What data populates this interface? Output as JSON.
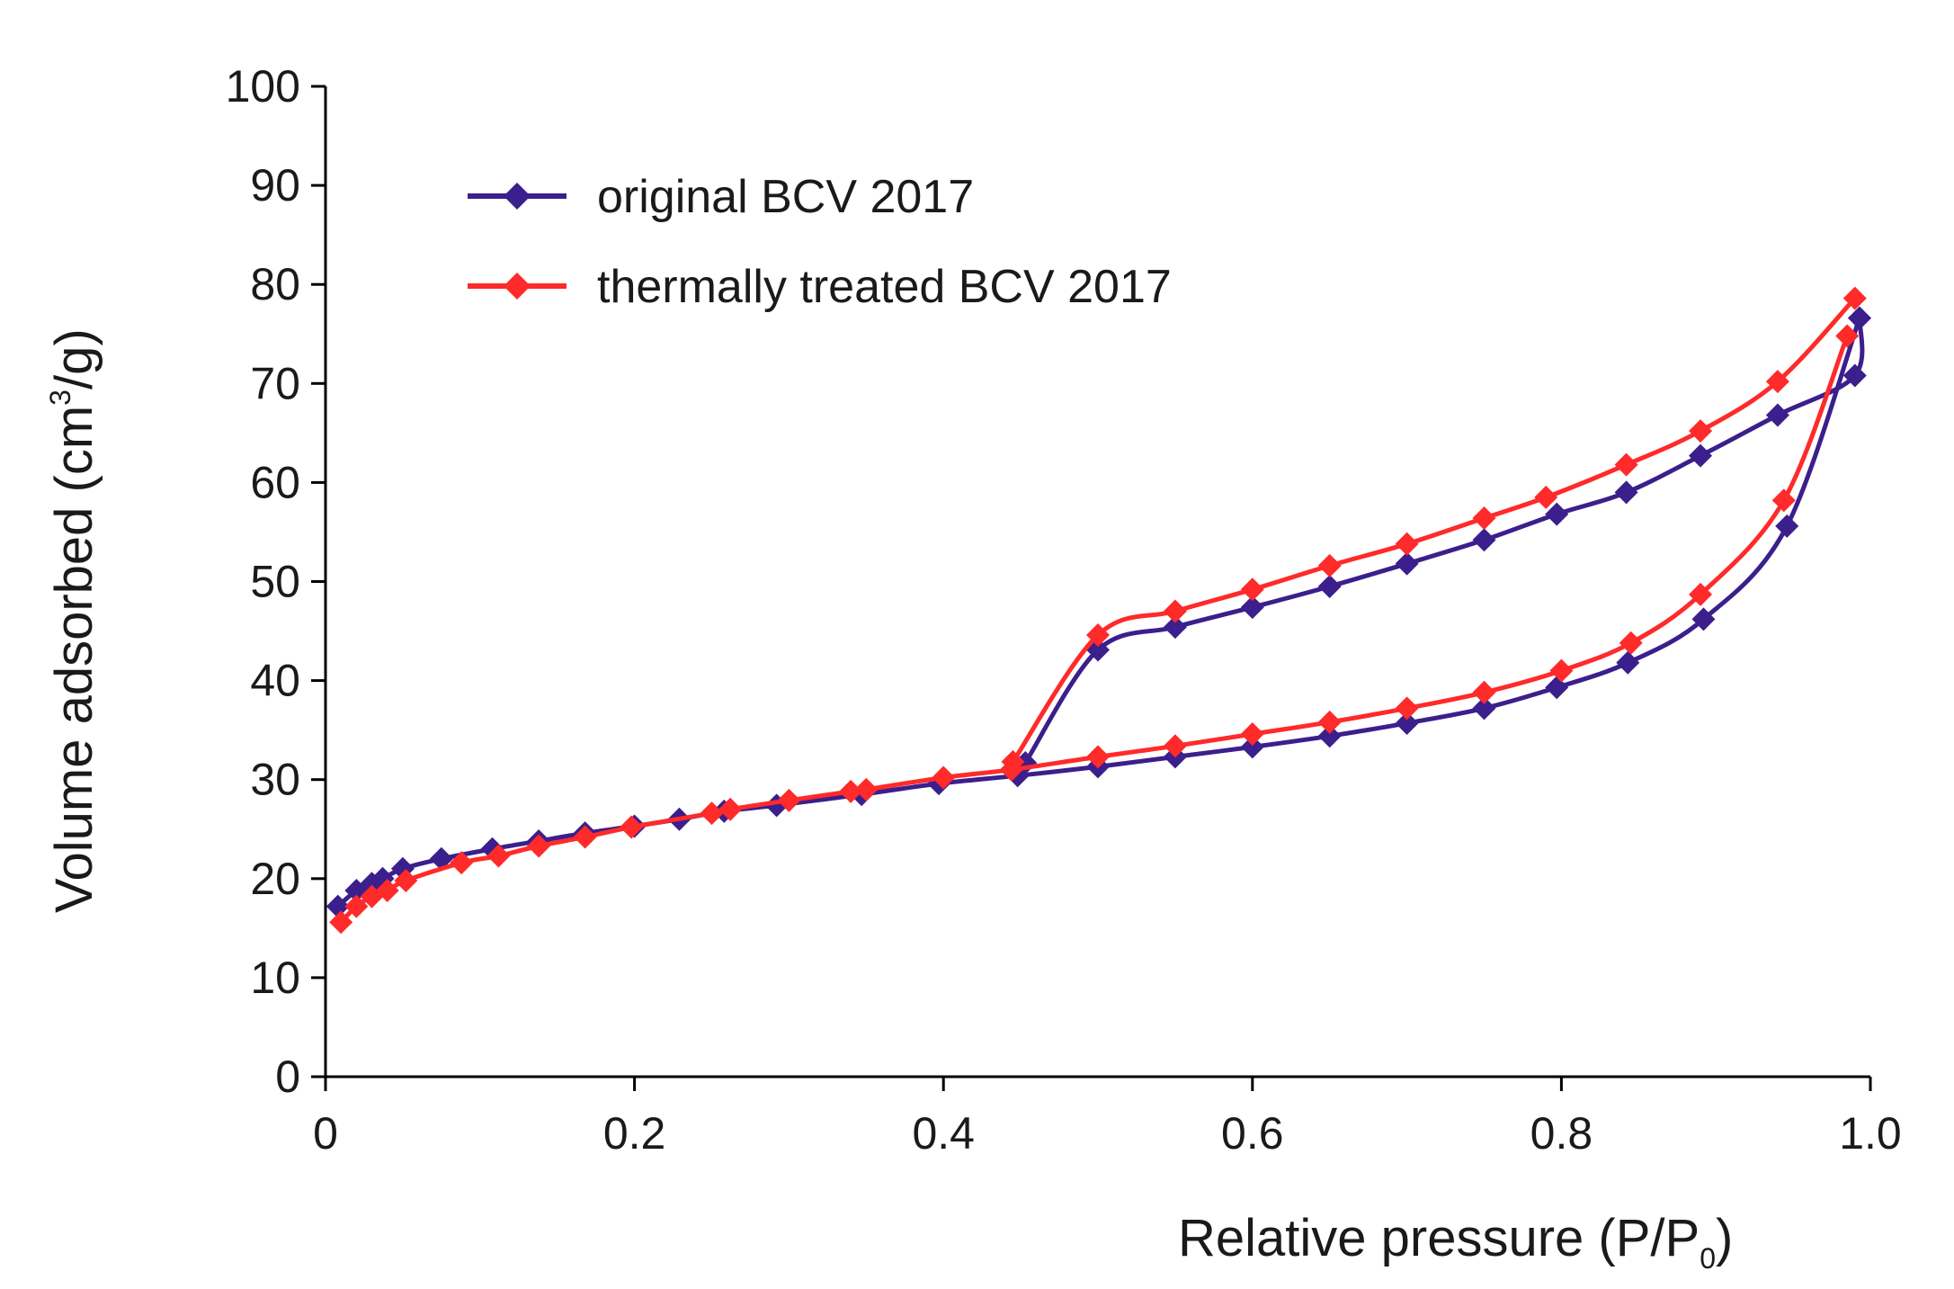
{
  "chart_data": {
    "type": "line",
    "title": "",
    "xlabel": {
      "main": "Relative pressure (P/P",
      "sub": "0",
      "end": ")"
    },
    "ylabel": {
      "main": "Volume adsorbed (cm",
      "sup": "3",
      "end": "/g)"
    },
    "xlim": [
      0,
      1.0
    ],
    "ylim": [
      0,
      100
    ],
    "x_ticks": [
      0,
      0.2,
      0.4,
      0.6,
      0.8,
      1.0
    ],
    "x_tick_labels": [
      "0",
      "0.2",
      "0.4",
      "0.6",
      "0.8",
      "1.0"
    ],
    "y_ticks": [
      0,
      10,
      20,
      30,
      40,
      50,
      60,
      70,
      80,
      90,
      100
    ],
    "y_tick_labels": [
      "0",
      "10",
      "20",
      "30",
      "40",
      "50",
      "60",
      "70",
      "80",
      "90",
      "100"
    ],
    "legend_position": "top-left",
    "series": [
      {
        "name": "original BCV 2017",
        "color": "#3b1f8c",
        "marker": "diamond",
        "adsorption": {
          "x": [
            0.008,
            0.02,
            0.03,
            0.037,
            0.05,
            0.075,
            0.108,
            0.138,
            0.168,
            0.2,
            0.229,
            0.258,
            0.292,
            0.347,
            0.397,
            0.448,
            0.5,
            0.55,
            0.6,
            0.65,
            0.7,
            0.75,
            0.797,
            0.843,
            0.892,
            0.946,
            0.993
          ],
          "y": [
            17.2,
            18.8,
            19.5,
            20.0,
            21.0,
            22.0,
            23.0,
            23.8,
            24.6,
            25.3,
            26.0,
            26.8,
            27.4,
            28.5,
            29.6,
            30.4,
            31.3,
            32.3,
            33.3,
            34.4,
            35.7,
            37.2,
            39.3,
            41.8,
            46.2,
            55.6,
            76.6
          ]
        },
        "desorption": {
          "x": [
            0.993,
            0.99,
            0.94,
            0.89,
            0.842,
            0.797,
            0.75,
            0.7,
            0.65,
            0.6,
            0.55,
            0.5,
            0.453
          ],
          "y": [
            76.6,
            70.8,
            66.8,
            62.7,
            59.0,
            56.8,
            54.2,
            51.8,
            49.5,
            47.4,
            45.4,
            43.1,
            31.7
          ]
        }
      },
      {
        "name": "thermally treated  BCV 2017",
        "color": "#ff2a2a",
        "marker": "diamond",
        "adsorption": {
          "x": [
            0.01,
            0.02,
            0.03,
            0.04,
            0.052,
            0.088,
            0.112,
            0.138,
            0.168,
            0.198,
            0.25,
            0.262,
            0.3,
            0.34,
            0.35,
            0.4,
            0.444,
            0.5,
            0.55,
            0.6,
            0.65,
            0.7,
            0.75,
            0.8,
            0.845,
            0.89,
            0.944,
            0.985
          ],
          "y": [
            15.6,
            17.2,
            18.2,
            18.8,
            19.8,
            21.6,
            22.3,
            23.3,
            24.2,
            25.2,
            26.6,
            27.0,
            27.9,
            28.8,
            29.0,
            30.2,
            31.0,
            32.3,
            33.4,
            34.6,
            35.8,
            37.2,
            38.8,
            41.0,
            43.8,
            48.7,
            58.2,
            74.8
          ]
        },
        "desorption": {
          "x": [
            0.99,
            0.94,
            0.89,
            0.842,
            0.79,
            0.75,
            0.7,
            0.65,
            0.6,
            0.55,
            0.5,
            0.445
          ],
          "y": [
            78.6,
            70.2,
            65.2,
            61.8,
            58.5,
            56.4,
            53.8,
            51.6,
            49.2,
            47.0,
            44.6,
            31.8
          ]
        }
      }
    ]
  }
}
